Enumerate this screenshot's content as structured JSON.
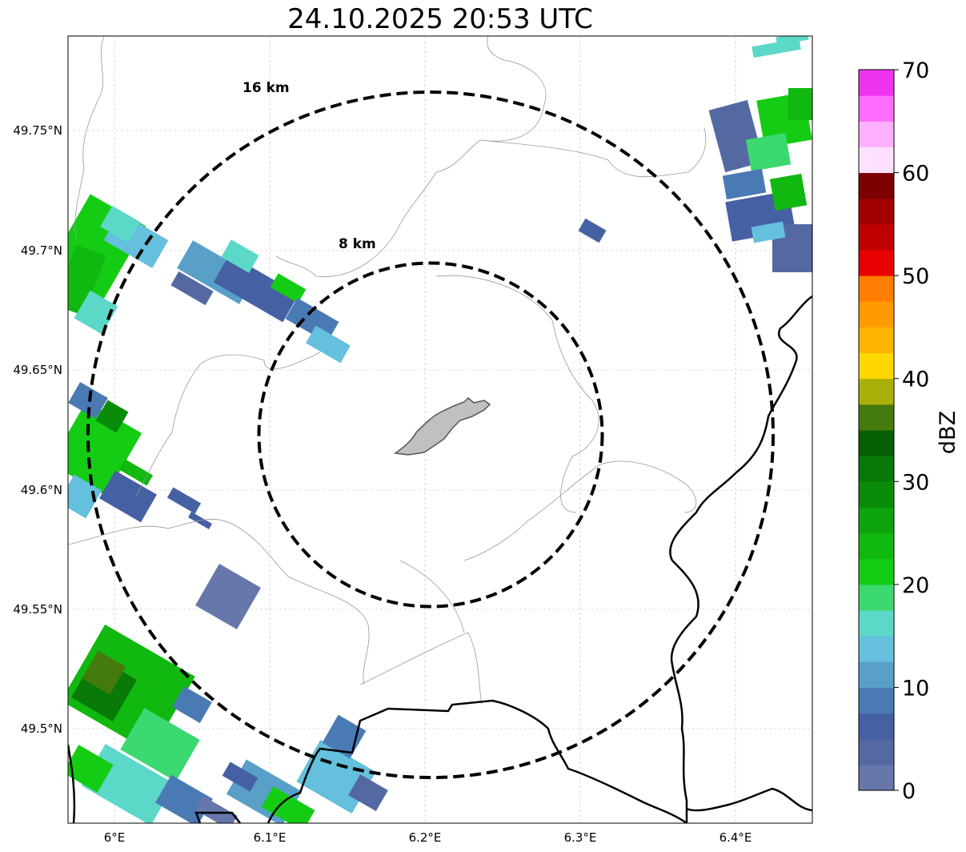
{
  "title": "24.10.2025 20:53 UTC",
  "map": {
    "x_ticks": [
      "6°E",
      "6.1°E",
      "6.2°E",
      "6.3°E",
      "6.4°E"
    ],
    "y_ticks": [
      "49.75°N",
      "49.7°N",
      "49.65°N",
      "49.6°N",
      "49.55°N",
      "49.5°N"
    ],
    "range_rings": [
      {
        "label": "16 km",
        "km": 16
      },
      {
        "label": "8 km",
        "km": 8
      }
    ]
  },
  "colorbar": {
    "label": "dBZ",
    "min": 0,
    "max": 70,
    "step": 2.5,
    "ticks": [
      "0",
      "10",
      "20",
      "30",
      "40",
      "50",
      "60",
      "70"
    ],
    "colors": [
      "#6677aa",
      "#5468a2",
      "#4660a4",
      "#4a7ab4",
      "#58a0c8",
      "#64c0dc",
      "#5cd8c8",
      "#3cd870",
      "#14cc14",
      "#10b810",
      "#0ea40e",
      "#0a8c0a",
      "#087a08",
      "#066006",
      "#457a0c",
      "#aab00a",
      "#ffd700",
      "#ffb400",
      "#ff9a00",
      "#ff7d00",
      "#e60000",
      "#c00000",
      "#a00000",
      "#7d0000",
      "#ffe0ff",
      "#ffb0ff",
      "#ff6cff",
      "#ee33ee"
    ]
  }
}
